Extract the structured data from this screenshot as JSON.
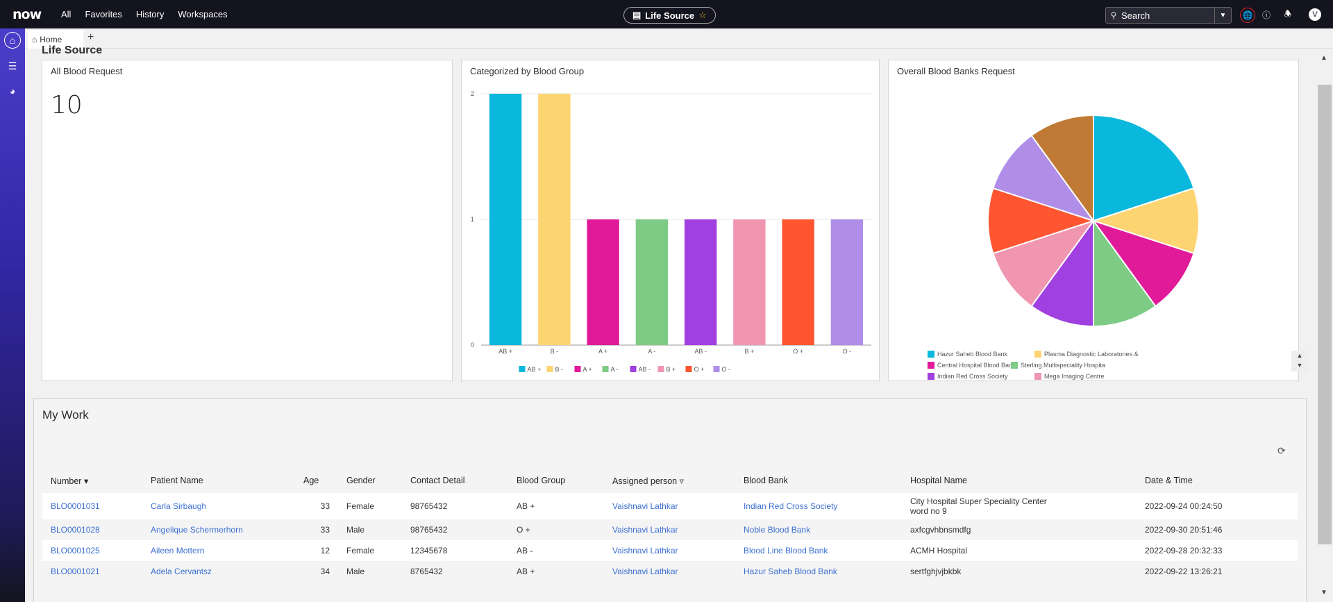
{
  "topbar": {
    "logo": "now",
    "nav": [
      "All",
      "Favorites",
      "History",
      "Workspaces"
    ],
    "app_title": "Life Source",
    "search_label": "Search",
    "avatar_initial": "V"
  },
  "tabs": {
    "home_label": "Home"
  },
  "page": {
    "section_title": "Life Source"
  },
  "cards": {
    "all_requests": {
      "title": "All Blood Request",
      "value": "10"
    },
    "by_group": {
      "title": "Categorized by Blood Group"
    },
    "by_bank": {
      "title": "Overall Blood Banks Request"
    }
  },
  "chart_data": [
    {
      "type": "bar",
      "title": "Categorized by Blood Group",
      "categories": [
        "AB +",
        "B -",
        "A +",
        "A -",
        "AB -",
        "B +",
        "O +",
        "O -"
      ],
      "values": [
        2,
        2,
        1,
        1,
        1,
        1,
        1,
        1
      ],
      "colors": [
        "#0bb8dd",
        "#fdd472",
        "#e01a99",
        "#7ecb86",
        "#a040e0",
        "#f096b0",
        "#ff5530",
        "#b08ee8"
      ],
      "ylim": [
        0,
        2
      ],
      "yticks": [
        0,
        1,
        2
      ],
      "legend": "bottom",
      "grid": true
    },
    {
      "type": "pie",
      "title": "Overall Blood Banks Request",
      "slices": [
        {
          "label": "Hazur Saheb Blood Bank",
          "value": 2,
          "color": "#0bb8dd"
        },
        {
          "label": "Plasma Diagnostic Laboratories &",
          "value": 1,
          "color": "#fdd472"
        },
        {
          "label": "Central Hospital Blood Bank",
          "value": 1,
          "color": "#e01a99"
        },
        {
          "label": "Sterling Multispeciality Hospita",
          "value": 1,
          "color": "#7ecb86"
        },
        {
          "label": "Indian Red Cross Society",
          "value": 1,
          "color": "#a040e0"
        },
        {
          "label": "Mega Imaging Centre",
          "value": 1,
          "color": "#f096b0"
        },
        {
          "label": "",
          "value": 1,
          "color": "#ff5530"
        },
        {
          "label": "",
          "value": 1,
          "color": "#b08ee8"
        },
        {
          "label": "",
          "value": 1,
          "color": "#c07a35"
        }
      ],
      "legend": "bottom"
    }
  ],
  "mywork": {
    "title": "My Work",
    "columns": [
      "Number",
      "Patient Name",
      "Age",
      "Gender",
      "Contact Detail",
      "Blood Group",
      "Assigned person",
      "Blood Bank",
      "Hospital Name",
      "Date & Time"
    ],
    "rows": [
      {
        "number": "BLO0001031",
        "patient": "Carla Sirbaugh",
        "age": "33",
        "gender": "Female",
        "contact": "98765432",
        "group": "AB +",
        "assigned": "Vaishnavi  Lathkar",
        "bank": "Indian Red Cross Society",
        "hospital": "City Hospital Super Speciality Center",
        "hospital2": "word no 9",
        "datetime": "2022-09-24 00:24:50"
      },
      {
        "number": "BLO0001028",
        "patient": "Angelique Schermerhorn",
        "age": "33",
        "gender": "Male",
        "contact": "98765432",
        "group": "O +",
        "assigned": "Vaishnavi  Lathkar",
        "bank": "Noble Blood Bank",
        "hospital": "axfcgvhbnsmdfg",
        "hospital2": "",
        "datetime": "2022-09-30 20:51:46"
      },
      {
        "number": "BLO0001025",
        "patient": "Aileen Mottern",
        "age": "12",
        "gender": "Female",
        "contact": "12345678",
        "group": "AB -",
        "assigned": "Vaishnavi  Lathkar",
        "bank": "Blood Line Blood Bank",
        "hospital": "ACMH Hospital",
        "hospital2": "",
        "datetime": "2022-09-28 20:32:33"
      },
      {
        "number": "BLO0001021",
        "patient": "Adela Cervantsz",
        "age": "34",
        "gender": "Male",
        "contact": "8765432",
        "group": "AB +",
        "assigned": "Vaishnavi  Lathkar",
        "bank": "Hazur Saheb Blood Bank",
        "hospital": "sertfghjvjbkbk",
        "hospital2": "",
        "datetime": "2022-09-22 13:26:21"
      }
    ]
  }
}
